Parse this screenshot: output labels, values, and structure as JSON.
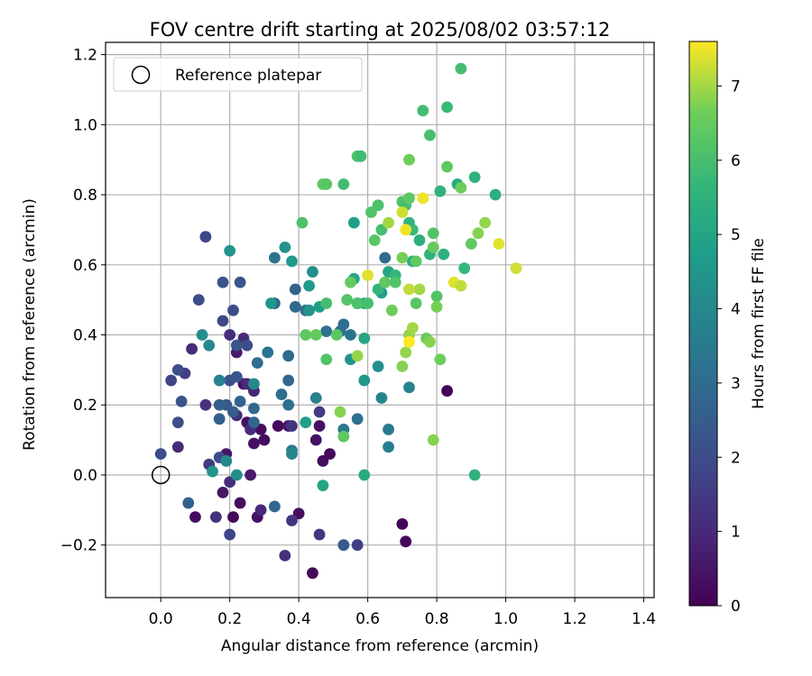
{
  "chart_data": {
    "type": "scatter",
    "title": "FOV centre drift starting at 2025/08/02 03:57:12",
    "xlabel": "Angular distance from reference (arcmin)",
    "ylabel": "Rotation from reference (arcmin)",
    "xlim": [
      -0.16,
      1.43
    ],
    "ylim": [
      -0.35,
      1.235
    ],
    "xticks": [
      0.0,
      0.2,
      0.4,
      0.6,
      0.8,
      1.0,
      1.2,
      1.4
    ],
    "xtick_labels": [
      "0.0",
      "0.2",
      "0.4",
      "0.6",
      "0.8",
      "1.0",
      "1.2",
      "1.4"
    ],
    "yticks": [
      -0.2,
      0.0,
      0.2,
      0.4,
      0.6,
      0.8,
      1.0,
      1.2
    ],
    "ytick_labels": [
      "−0.2",
      "0.0",
      "0.2",
      "0.4",
      "0.6",
      "0.8",
      "1.0",
      "1.2"
    ],
    "grid": true,
    "legend": {
      "position": "upper-left",
      "entries": [
        {
          "label": "Reference platepar",
          "marker": "open-circle"
        }
      ]
    },
    "reference_point": {
      "x": 0.0,
      "y": 0.0
    },
    "colorbar": {
      "label": "Hours from first FF file",
      "colormap": "viridis",
      "min": 0,
      "max": 7.6,
      "ticks": [
        0,
        1,
        2,
        3,
        4,
        5,
        6,
        7
      ],
      "tick_labels": [
        "0",
        "1",
        "2",
        "3",
        "4",
        "5",
        "6",
        "7"
      ]
    },
    "points": [
      {
        "x": 0.1,
        "y": -0.12,
        "hours": 0.3
      },
      {
        "x": 0.18,
        "y": -0.05,
        "hours": 0.5
      },
      {
        "x": 0.21,
        "y": -0.12,
        "hours": 0.2
      },
      {
        "x": 0.26,
        "y": 0.0,
        "hours": 0.6
      },
      {
        "x": 0.27,
        "y": 0.09,
        "hours": 0.4
      },
      {
        "x": 0.3,
        "y": 0.1,
        "hours": 0.3
      },
      {
        "x": 0.34,
        "y": 0.14,
        "hours": 0.2
      },
      {
        "x": 0.37,
        "y": 0.14,
        "hours": 0.5
      },
      {
        "x": 0.4,
        "y": -0.11,
        "hours": 0.3
      },
      {
        "x": 0.44,
        "y": -0.28,
        "hours": 0.2
      },
      {
        "x": 0.45,
        "y": 0.1,
        "hours": 0.4
      },
      {
        "x": 0.47,
        "y": 0.04,
        "hours": 0.3
      },
      {
        "x": 0.49,
        "y": 0.06,
        "hours": 0.2
      },
      {
        "x": 0.7,
        "y": -0.14,
        "hours": 0.1
      },
      {
        "x": 0.71,
        "y": -0.19,
        "hours": 0.2
      },
      {
        "x": 0.83,
        "y": 0.24,
        "hours": 0.1
      },
      {
        "x": 0.24,
        "y": 0.26,
        "hours": 0.4
      },
      {
        "x": 0.22,
        "y": 0.35,
        "hours": 0.6
      },
      {
        "x": 0.29,
        "y": 0.13,
        "hours": 0.3
      },
      {
        "x": 0.19,
        "y": 0.06,
        "hours": 0.5
      },
      {
        "x": 0.25,
        "y": 0.15,
        "hours": 0.4
      },
      {
        "x": 0.23,
        "y": -0.08,
        "hours": 0.3
      },
      {
        "x": 0.28,
        "y": -0.12,
        "hours": 0.4
      },
      {
        "x": 0.46,
        "y": 0.14,
        "hours": 0.4
      },
      {
        "x": 0.05,
        "y": 0.08,
        "hours": 1.0
      },
      {
        "x": 0.09,
        "y": 0.36,
        "hours": 1.0
      },
      {
        "x": 0.13,
        "y": 0.2,
        "hours": 1.2
      },
      {
        "x": 0.14,
        "y": 0.03,
        "hours": 1.5
      },
      {
        "x": 0.16,
        "y": -0.12,
        "hours": 1.2
      },
      {
        "x": 0.2,
        "y": -0.02,
        "hours": 1.1
      },
      {
        "x": 0.2,
        "y": -0.17,
        "hours": 1.8
      },
      {
        "x": 0.22,
        "y": 0.17,
        "hours": 1.1
      },
      {
        "x": 0.24,
        "y": 0.39,
        "hours": 1.0
      },
      {
        "x": 0.25,
        "y": 0.26,
        "hours": 1.0
      },
      {
        "x": 0.27,
        "y": 0.24,
        "hours": 0.9
      },
      {
        "x": 0.2,
        "y": 0.4,
        "hours": 1.1
      },
      {
        "x": 0.26,
        "y": 0.13,
        "hours": 1.0
      },
      {
        "x": 0.29,
        "y": -0.1,
        "hours": 1.0
      },
      {
        "x": 0.36,
        "y": -0.23,
        "hours": 1.2
      },
      {
        "x": 0.38,
        "y": -0.13,
        "hours": 1.3
      },
      {
        "x": 0.46,
        "y": -0.17,
        "hours": 1.4
      },
      {
        "x": 0.38,
        "y": 0.14,
        "hours": 1.3
      },
      {
        "x": 0.57,
        "y": -0.2,
        "hours": 1.6
      },
      {
        "x": 0.53,
        "y": -0.2,
        "hours": 2.4
      },
      {
        "x": 0.46,
        "y": 0.18,
        "hours": 1.5
      },
      {
        "x": 0.13,
        "y": 0.68,
        "hours": 1.8
      },
      {
        "x": 0.11,
        "y": 0.5,
        "hours": 2.0
      },
      {
        "x": 0.07,
        "y": 0.29,
        "hours": 1.6
      },
      {
        "x": 0.05,
        "y": 0.3,
        "hours": 2.1
      },
      {
        "x": 0.03,
        "y": 0.27,
        "hours": 1.8
      },
      {
        "x": 0.0,
        "y": 0.06,
        "hours": 2.0
      },
      {
        "x": 0.06,
        "y": 0.21,
        "hours": 2.2
      },
      {
        "x": 0.05,
        "y": 0.15,
        "hours": 2.1
      },
      {
        "x": 0.08,
        "y": -0.08,
        "hours": 2.6
      },
      {
        "x": 0.17,
        "y": 0.05,
        "hours": 2.0
      },
      {
        "x": 0.18,
        "y": 0.44,
        "hours": 1.9
      },
      {
        "x": 0.18,
        "y": 0.55,
        "hours": 2.2
      },
      {
        "x": 0.21,
        "y": 0.47,
        "hours": 2.0
      },
      {
        "x": 0.23,
        "y": 0.55,
        "hours": 2.3
      },
      {
        "x": 0.2,
        "y": 0.27,
        "hours": 2.1
      },
      {
        "x": 0.22,
        "y": 0.28,
        "hours": 2.3
      },
      {
        "x": 0.19,
        "y": 0.2,
        "hours": 2.4
      },
      {
        "x": 0.21,
        "y": 0.18,
        "hours": 2.5
      },
      {
        "x": 0.22,
        "y": 0.37,
        "hours": 2.2
      },
      {
        "x": 0.25,
        "y": 0.37,
        "hours": 2.0
      },
      {
        "x": 0.17,
        "y": 0.16,
        "hours": 2.6
      },
      {
        "x": 0.17,
        "y": 0.2,
        "hours": 2.6
      },
      {
        "x": 0.23,
        "y": 0.21,
        "hours": 2.7
      },
      {
        "x": 0.27,
        "y": 0.19,
        "hours": 2.9
      },
      {
        "x": 0.27,
        "y": 0.15,
        "hours": 2.8
      },
      {
        "x": 0.28,
        "y": 0.32,
        "hours": 3.0
      },
      {
        "x": 0.31,
        "y": 0.35,
        "hours": 3.2
      },
      {
        "x": 0.33,
        "y": 0.49,
        "hours": 2.7
      },
      {
        "x": 0.33,
        "y": 0.62,
        "hours": 3.3
      },
      {
        "x": 0.35,
        "y": 0.23,
        "hours": 3.0
      },
      {
        "x": 0.37,
        "y": 0.34,
        "hours": 2.9
      },
      {
        "x": 0.37,
        "y": 0.27,
        "hours": 2.8
      },
      {
        "x": 0.39,
        "y": 0.53,
        "hours": 2.7
      },
      {
        "x": 0.39,
        "y": 0.48,
        "hours": 2.9
      },
      {
        "x": 0.42,
        "y": 0.47,
        "hours": 3.0
      },
      {
        "x": 0.37,
        "y": 0.2,
        "hours": 3.1
      },
      {
        "x": 0.33,
        "y": -0.09,
        "hours": 2.8
      },
      {
        "x": 0.38,
        "y": 0.07,
        "hours": 3.5
      },
      {
        "x": 0.48,
        "y": 0.41,
        "hours": 3.2
      },
      {
        "x": 0.52,
        "y": 0.41,
        "hours": 3.0
      },
      {
        "x": 0.53,
        "y": 0.43,
        "hours": 3.1
      },
      {
        "x": 0.55,
        "y": 0.4,
        "hours": 3.3
      },
      {
        "x": 0.57,
        "y": 0.16,
        "hours": 3.2
      },
      {
        "x": 0.57,
        "y": 0.49,
        "hours": 3.0
      },
      {
        "x": 0.53,
        "y": 0.13,
        "hours": 3.4
      },
      {
        "x": 0.66,
        "y": 0.13,
        "hours": 3.5
      },
      {
        "x": 0.66,
        "y": 0.08,
        "hours": 3.6
      },
      {
        "x": 0.65,
        "y": 0.62,
        "hours": 3.0
      },
      {
        "x": 0.72,
        "y": 0.25,
        "hours": 3.8
      },
      {
        "x": 0.64,
        "y": 0.22,
        "hours": 3.9
      },
      {
        "x": 0.45,
        "y": 0.22,
        "hours": 3.8
      },
      {
        "x": 0.12,
        "y": 0.4,
        "hours": 4.2
      },
      {
        "x": 0.14,
        "y": 0.37,
        "hours": 4.0
      },
      {
        "x": 0.15,
        "y": 0.01,
        "hours": 4.4
      },
      {
        "x": 0.17,
        "y": 0.27,
        "hours": 3.8
      },
      {
        "x": 0.19,
        "y": 0.04,
        "hours": 4.0
      },
      {
        "x": 0.22,
        "y": 0.0,
        "hours": 4.2
      },
      {
        "x": 0.27,
        "y": 0.26,
        "hours": 4.0
      },
      {
        "x": 0.2,
        "y": 0.64,
        "hours": 4.4
      },
      {
        "x": 0.36,
        "y": 0.65,
        "hours": 4.3
      },
      {
        "x": 0.38,
        "y": 0.61,
        "hours": 4.6
      },
      {
        "x": 0.42,
        "y": 0.15,
        "hours": 4.8
      },
      {
        "x": 0.43,
        "y": 0.47,
        "hours": 4.4
      },
      {
        "x": 0.43,
        "y": 0.54,
        "hours": 4.6
      },
      {
        "x": 0.44,
        "y": 0.58,
        "hours": 4.2
      },
      {
        "x": 0.32,
        "y": 0.49,
        "hours": 4.5
      },
      {
        "x": 0.38,
        "y": 0.06,
        "hours": 4.0
      },
      {
        "x": 0.59,
        "y": 0.27,
        "hours": 4.5
      },
      {
        "x": 0.63,
        "y": 0.31,
        "hours": 4.2
      },
      {
        "x": 0.55,
        "y": 0.33,
        "hours": 4.4
      },
      {
        "x": 0.46,
        "y": 0.48,
        "hours": 4.8
      },
      {
        "x": 0.47,
        "y": -0.03,
        "hours": 5.0
      },
      {
        "x": 0.59,
        "y": 0.0,
        "hours": 5.2
      },
      {
        "x": 0.59,
        "y": 0.39,
        "hours": 5.0
      },
      {
        "x": 0.59,
        "y": 0.49,
        "hours": 5.2
      },
      {
        "x": 0.56,
        "y": 0.56,
        "hours": 5.1
      },
      {
        "x": 0.56,
        "y": 0.72,
        "hours": 4.8
      },
      {
        "x": 0.64,
        "y": 0.52,
        "hours": 4.8
      },
      {
        "x": 0.66,
        "y": 0.58,
        "hours": 5.0
      },
      {
        "x": 0.73,
        "y": 0.61,
        "hours": 5.3
      },
      {
        "x": 0.75,
        "y": 0.67,
        "hours": 5.4
      },
      {
        "x": 0.78,
        "y": 0.63,
        "hours": 5.5
      },
      {
        "x": 0.82,
        "y": 0.63,
        "hours": 5.4
      },
      {
        "x": 0.86,
        "y": 0.83,
        "hours": 5.2
      },
      {
        "x": 0.91,
        "y": 0.85,
        "hours": 5.5
      },
      {
        "x": 0.97,
        "y": 0.8,
        "hours": 5.4
      },
      {
        "x": 0.81,
        "y": 0.81,
        "hours": 5.5
      },
      {
        "x": 0.88,
        "y": 0.59,
        "hours": 5.7
      },
      {
        "x": 0.91,
        "y": 0.0,
        "hours": 5.5
      },
      {
        "x": 0.72,
        "y": 0.72,
        "hours": 5.6
      },
      {
        "x": 0.73,
        "y": 0.7,
        "hours": 5.8
      },
      {
        "x": 0.68,
        "y": 0.57,
        "hours": 5.7
      },
      {
        "x": 0.65,
        "y": 0.55,
        "hours": 5.8
      },
      {
        "x": 0.63,
        "y": 0.53,
        "hours": 5.6
      },
      {
        "x": 0.76,
        "y": 1.04,
        "hours": 5.9
      },
      {
        "x": 0.83,
        "y": 1.05,
        "hours": 5.8
      },
      {
        "x": 0.78,
        "y": 0.97,
        "hours": 6.0
      },
      {
        "x": 0.87,
        "y": 1.16,
        "hours": 6.0
      },
      {
        "x": 0.57,
        "y": 0.91,
        "hours": 6.1
      },
      {
        "x": 0.58,
        "y": 0.91,
        "hours": 5.9
      },
      {
        "x": 0.53,
        "y": 0.83,
        "hours": 5.9
      },
      {
        "x": 0.41,
        "y": 0.72,
        "hours": 6.1
      },
      {
        "x": 0.47,
        "y": 0.83,
        "hours": 6.4
      },
      {
        "x": 0.48,
        "y": 0.83,
        "hours": 6.3
      },
      {
        "x": 0.42,
        "y": 0.4,
        "hours": 6.4
      },
      {
        "x": 0.45,
        "y": 0.4,
        "hours": 6.5
      },
      {
        "x": 0.48,
        "y": 0.33,
        "hours": 6.2
      },
      {
        "x": 0.48,
        "y": 0.49,
        "hours": 6.0
      },
      {
        "x": 0.51,
        "y": 0.4,
        "hours": 6.3
      },
      {
        "x": 0.53,
        "y": 0.11,
        "hours": 6.4
      },
      {
        "x": 0.54,
        "y": 0.5,
        "hours": 6.2
      },
      {
        "x": 0.55,
        "y": 0.55,
        "hours": 6.5
      },
      {
        "x": 0.57,
        "y": 0.49,
        "hours": 6.1
      },
      {
        "x": 0.61,
        "y": 0.75,
        "hours": 6.2
      },
      {
        "x": 0.62,
        "y": 0.67,
        "hours": 6.3
      },
      {
        "x": 0.63,
        "y": 0.77,
        "hours": 6.1
      },
      {
        "x": 0.64,
        "y": 0.7,
        "hours": 6.0
      },
      {
        "x": 0.65,
        "y": 0.55,
        "hours": 6.4
      },
      {
        "x": 0.67,
        "y": 0.47,
        "hours": 6.6
      },
      {
        "x": 0.68,
        "y": 0.55,
        "hours": 6.2
      },
      {
        "x": 0.7,
        "y": 0.78,
        "hours": 6.2
      },
      {
        "x": 0.71,
        "y": 0.77,
        "hours": 6.0
      },
      {
        "x": 0.72,
        "y": 0.79,
        "hours": 6.4
      },
      {
        "x": 0.72,
        "y": 0.9,
        "hours": 6.6
      },
      {
        "x": 0.74,
        "y": 0.49,
        "hours": 6.3
      },
      {
        "x": 0.74,
        "y": 0.61,
        "hours": 6.4
      },
      {
        "x": 0.77,
        "y": 0.39,
        "hours": 6.5
      },
      {
        "x": 0.78,
        "y": 0.38,
        "hours": 6.8
      },
      {
        "x": 0.79,
        "y": 0.1,
        "hours": 6.8
      },
      {
        "x": 0.79,
        "y": 0.69,
        "hours": 6.2
      },
      {
        "x": 0.79,
        "y": 0.65,
        "hours": 6.5
      },
      {
        "x": 0.8,
        "y": 0.51,
        "hours": 6.2
      },
      {
        "x": 0.8,
        "y": 0.48,
        "hours": 6.7
      },
      {
        "x": 0.81,
        "y": 0.33,
        "hours": 6.6
      },
      {
        "x": 0.83,
        "y": 0.88,
        "hours": 6.4
      },
      {
        "x": 0.87,
        "y": 0.82,
        "hours": 6.6
      },
      {
        "x": 0.9,
        "y": 0.66,
        "hours": 6.4
      },
      {
        "x": 0.92,
        "y": 0.69,
        "hours": 6.8
      },
      {
        "x": 0.94,
        "y": 0.72,
        "hours": 6.9
      },
      {
        "x": 0.6,
        "y": 0.49,
        "hours": 6.0
      },
      {
        "x": 0.52,
        "y": 0.18,
        "hours": 6.8
      },
      {
        "x": 0.57,
        "y": 0.34,
        "hours": 6.9
      },
      {
        "x": 0.7,
        "y": 0.31,
        "hours": 6.8
      },
      {
        "x": 0.71,
        "y": 0.35,
        "hours": 6.9
      },
      {
        "x": 0.72,
        "y": 0.4,
        "hours": 6.9
      },
      {
        "x": 0.73,
        "y": 0.42,
        "hours": 7.0
      },
      {
        "x": 0.75,
        "y": 0.53,
        "hours": 7.0
      },
      {
        "x": 0.7,
        "y": 0.62,
        "hours": 6.7
      },
      {
        "x": 0.66,
        "y": 0.72,
        "hours": 7.0
      },
      {
        "x": 0.6,
        "y": 0.57,
        "hours": 7.4
      },
      {
        "x": 0.7,
        "y": 0.75,
        "hours": 7.3
      },
      {
        "x": 0.71,
        "y": 0.7,
        "hours": 7.5
      },
      {
        "x": 0.72,
        "y": 0.53,
        "hours": 7.2
      },
      {
        "x": 0.72,
        "y": 0.38,
        "hours": 7.6
      },
      {
        "x": 0.76,
        "y": 0.79,
        "hours": 7.5
      },
      {
        "x": 0.85,
        "y": 0.55,
        "hours": 7.4
      },
      {
        "x": 0.87,
        "y": 0.54,
        "hours": 7.2
      },
      {
        "x": 0.98,
        "y": 0.66,
        "hours": 7.4
      },
      {
        "x": 1.03,
        "y": 0.59,
        "hours": 7.3
      }
    ]
  }
}
